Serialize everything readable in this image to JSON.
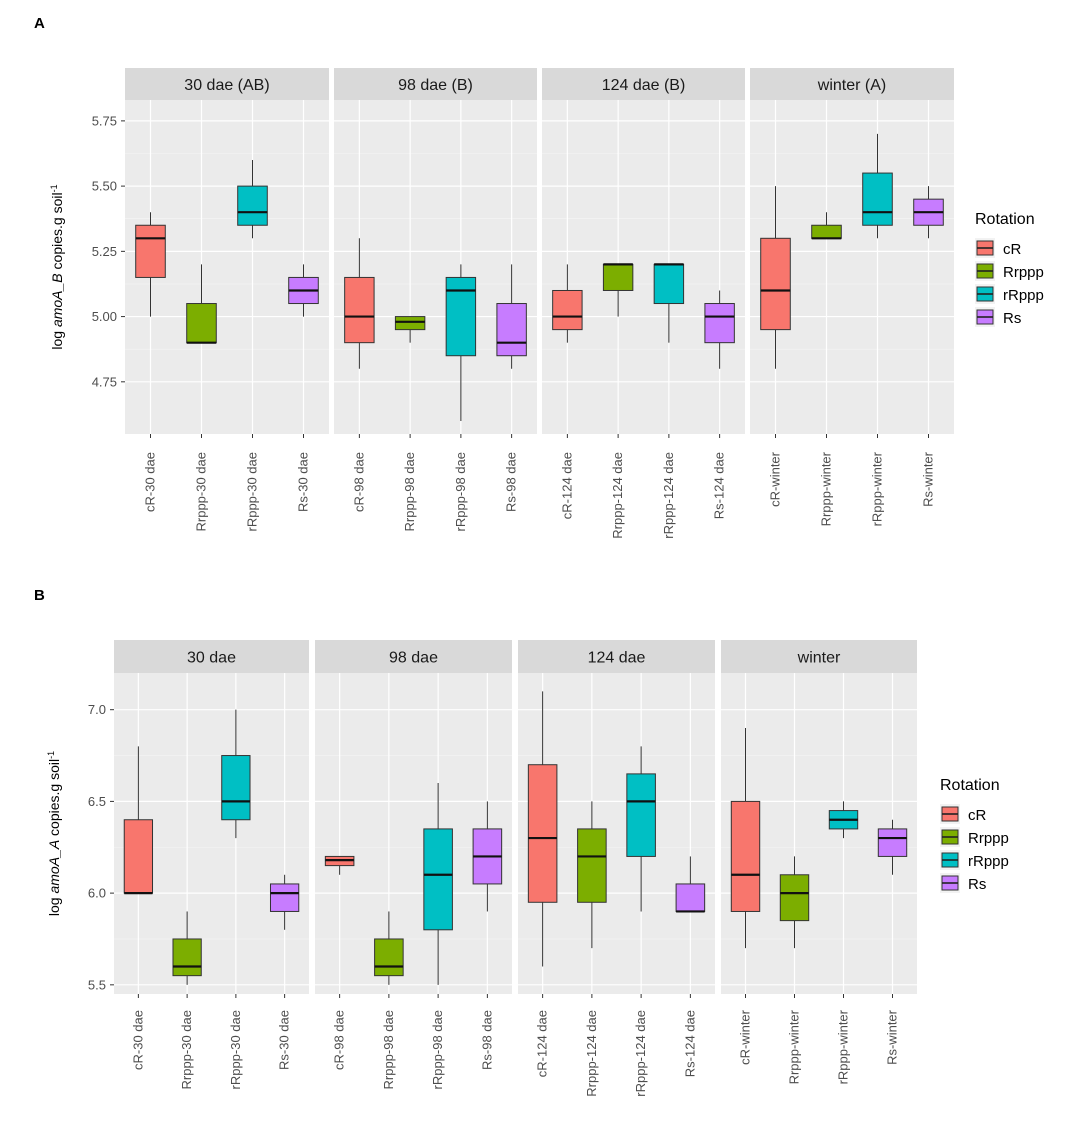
{
  "colors": {
    "cR": "#F8766D",
    "Rrppp": "#7CAE00",
    "rRppp": "#00BFC4",
    "Rs": "#C77CFF"
  },
  "legend": {
    "title": "Rotation",
    "items": [
      "cR",
      "Rrppp",
      "rRppp",
      "Rs"
    ]
  },
  "chart_data": [
    {
      "panel_label": "A",
      "type": "boxplot",
      "ylabel": {
        "pre": "log ",
        "gene": "amoA_B",
        "post": " copies.g soil",
        "sup": "-1"
      },
      "ylim": [
        4.55,
        5.83
      ],
      "yticks": [
        4.75,
        5.0,
        5.25,
        5.5,
        5.75
      ],
      "ytick_labels": [
        "4.75",
        "5.00",
        "5.25",
        "5.50",
        "5.75"
      ],
      "facets": [
        {
          "title": "30 dae (AB)",
          "categories": [
            "cR-30 dae",
            "Rrppp-30 dae",
            "rRppp-30 dae",
            "Rs-30 dae"
          ],
          "boxes": [
            {
              "group": "cR",
              "lo": 5.0,
              "q1": 5.15,
              "median": 5.3,
              "q3": 5.35,
              "hi": 5.4
            },
            {
              "group": "Rrppp",
              "lo": 4.9,
              "q1": 4.9,
              "median": 4.9,
              "q3": 5.05,
              "hi": 5.2
            },
            {
              "group": "rRppp",
              "lo": 5.3,
              "q1": 5.35,
              "median": 5.4,
              "q3": 5.5,
              "hi": 5.6
            },
            {
              "group": "Rs",
              "lo": 5.0,
              "q1": 5.05,
              "median": 5.1,
              "q3": 5.15,
              "hi": 5.2
            }
          ]
        },
        {
          "title": "98 dae (B)",
          "categories": [
            "cR-98 dae",
            "Rrppp-98 dae",
            "rRppp-98 dae",
            "Rs-98 dae"
          ],
          "boxes": [
            {
              "group": "cR",
              "lo": 4.8,
              "q1": 4.9,
              "median": 5.0,
              "q3": 5.15,
              "hi": 5.3
            },
            {
              "group": "Rrppp",
              "lo": 4.9,
              "q1": 4.95,
              "median": 4.98,
              "q3": 5.0,
              "hi": 5.0
            },
            {
              "group": "rRppp",
              "lo": 4.6,
              "q1": 4.85,
              "median": 5.1,
              "q3": 5.15,
              "hi": 5.2
            },
            {
              "group": "Rs",
              "lo": 4.8,
              "q1": 4.85,
              "median": 4.9,
              "q3": 5.05,
              "hi": 5.2
            }
          ]
        },
        {
          "title": "124 dae (B)",
          "categories": [
            "cR-124 dae",
            "Rrppp-124 dae",
            "rRppp-124 dae",
            "Rs-124 dae"
          ],
          "boxes": [
            {
              "group": "cR",
              "lo": 4.9,
              "q1": 4.95,
              "median": 5.0,
              "q3": 5.1,
              "hi": 5.2
            },
            {
              "group": "Rrppp",
              "lo": 5.0,
              "q1": 5.1,
              "median": 5.2,
              "q3": 5.2,
              "hi": 5.2
            },
            {
              "group": "rRppp",
              "lo": 4.9,
              "q1": 5.05,
              "median": 5.2,
              "q3": 5.2,
              "hi": 5.2
            },
            {
              "group": "Rs",
              "lo": 4.8,
              "q1": 4.9,
              "median": 5.0,
              "q3": 5.05,
              "hi": 5.1
            }
          ]
        },
        {
          "title": "winter (A)",
          "categories": [
            "cR-winter",
            "Rrppp-winter",
            "rRppp-winter",
            "Rs-winter"
          ],
          "boxes": [
            {
              "group": "cR",
              "lo": 4.8,
              "q1": 4.95,
              "median": 5.1,
              "q3": 5.3,
              "hi": 5.5
            },
            {
              "group": "Rrppp",
              "lo": 5.3,
              "q1": 5.3,
              "median": 5.3,
              "q3": 5.35,
              "hi": 5.4
            },
            {
              "group": "rRppp",
              "lo": 5.3,
              "q1": 5.35,
              "median": 5.4,
              "q3": 5.55,
              "hi": 5.7
            },
            {
              "group": "Rs",
              "lo": 5.3,
              "q1": 5.35,
              "median": 5.4,
              "q3": 5.45,
              "hi": 5.5
            }
          ]
        }
      ]
    },
    {
      "panel_label": "B",
      "type": "boxplot",
      "ylabel": {
        "pre": "log ",
        "gene": "amoA_A",
        "post": " copies.g soil",
        "sup": "-1"
      },
      "ylim": [
        5.45,
        7.2
      ],
      "yticks": [
        5.5,
        6.0,
        6.5,
        7.0
      ],
      "ytick_labels": [
        "5.5",
        "6.0",
        "6.5",
        "7.0"
      ],
      "facets": [
        {
          "title": "30 dae",
          "categories": [
            "cR-30 dae",
            "Rrppp-30 dae",
            "rRppp-30 dae",
            "Rs-30 dae"
          ],
          "boxes": [
            {
              "group": "cR",
              "lo": 6.0,
              "q1": 6.0,
              "median": 6.0,
              "q3": 6.4,
              "hi": 6.8
            },
            {
              "group": "Rrppp",
              "lo": 5.5,
              "q1": 5.55,
              "median": 5.6,
              "q3": 5.75,
              "hi": 5.9
            },
            {
              "group": "rRppp",
              "lo": 6.3,
              "q1": 6.4,
              "median": 6.5,
              "q3": 6.75,
              "hi": 7.0
            },
            {
              "group": "Rs",
              "lo": 5.8,
              "q1": 5.9,
              "median": 6.0,
              "q3": 6.05,
              "hi": 6.1
            }
          ]
        },
        {
          "title": "98 dae",
          "categories": [
            "cR-98 dae",
            "Rrppp-98 dae",
            "rRppp-98 dae",
            "Rs-98 dae"
          ],
          "boxes": [
            {
              "group": "cR",
              "lo": 6.1,
              "q1": 6.15,
              "median": 6.18,
              "q3": 6.2,
              "hi": 6.2
            },
            {
              "group": "Rrppp",
              "lo": 5.5,
              "q1": 5.55,
              "median": 5.6,
              "q3": 5.75,
              "hi": 5.9
            },
            {
              "group": "rRppp",
              "lo": 5.5,
              "q1": 5.8,
              "median": 6.1,
              "q3": 6.35,
              "hi": 6.6
            },
            {
              "group": "Rs",
              "lo": 5.9,
              "q1": 6.05,
              "median": 6.2,
              "q3": 6.35,
              "hi": 6.5
            }
          ]
        },
        {
          "title": "124 dae",
          "categories": [
            "cR-124 dae",
            "Rrppp-124 dae",
            "rRppp-124 dae",
            "Rs-124 dae"
          ],
          "boxes": [
            {
              "group": "cR",
              "lo": 5.6,
              "q1": 5.95,
              "median": 6.3,
              "q3": 6.7,
              "hi": 7.1
            },
            {
              "group": "Rrppp",
              "lo": 5.7,
              "q1": 5.95,
              "median": 6.2,
              "q3": 6.35,
              "hi": 6.5
            },
            {
              "group": "rRppp",
              "lo": 5.9,
              "q1": 6.2,
              "median": 6.5,
              "q3": 6.65,
              "hi": 6.8
            },
            {
              "group": "Rs",
              "lo": 5.9,
              "q1": 5.9,
              "median": 5.9,
              "q3": 6.05,
              "hi": 6.2
            }
          ]
        },
        {
          "title": "winter",
          "categories": [
            "cR-winter",
            "Rrppp-winter",
            "rRppp-winter",
            "Rs-winter"
          ],
          "boxes": [
            {
              "group": "cR",
              "lo": 5.7,
              "q1": 5.9,
              "median": 6.1,
              "q3": 6.5,
              "hi": 6.9
            },
            {
              "group": "Rrppp",
              "lo": 5.7,
              "q1": 5.85,
              "median": 6.0,
              "q3": 6.1,
              "hi": 6.2
            },
            {
              "group": "rRppp",
              "lo": 6.3,
              "q1": 6.35,
              "median": 6.4,
              "q3": 6.45,
              "hi": 6.5
            },
            {
              "group": "Rs",
              "lo": 6.1,
              "q1": 6.2,
              "median": 6.3,
              "q3": 6.35,
              "hi": 6.4
            }
          ]
        }
      ]
    }
  ]
}
